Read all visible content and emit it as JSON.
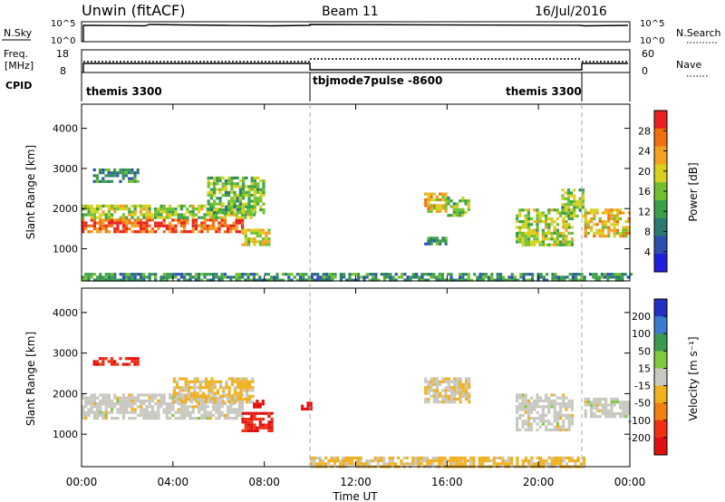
{
  "header": {
    "radar": "Unwin (fitACF)",
    "beam": "Beam 11",
    "date": "16/Jul/2016"
  },
  "panels": {
    "nsky_label": "N.Sky",
    "nsearch_label": "N.Search",
    "freq_label": "Freq.",
    "freq_unit": "[MHz]",
    "nave_label": "Nave",
    "cpid_label": "CPID",
    "count_ticks": [
      "10^5",
      "10^0"
    ],
    "freq_ticks": [
      "18",
      "8"
    ],
    "nave_ticks": [
      "60",
      "0"
    ],
    "cpid_segments": [
      {
        "name": "themis 3300",
        "start_h": 0,
        "end_h": 10
      },
      {
        "name": "tbjmode7pulse -8600",
        "start_h": 10,
        "end_h": 22
      },
      {
        "name": "themis 3300",
        "start_h": 22,
        "end_h": 24
      }
    ]
  },
  "axes": {
    "x_label": "Time UT",
    "x_ticks": [
      "00:00",
      "04:00",
      "08:00",
      "12:00",
      "16:00",
      "20:00",
      "00:00"
    ],
    "y_label": "Slant Range [km]",
    "y_ticks": [
      "4000",
      "3000",
      "2000",
      "1000"
    ]
  },
  "colorbars": {
    "power": {
      "label": "Power [dB]",
      "ticks": [
        "28",
        "24",
        "20",
        "16",
        "12",
        "8",
        "4"
      ],
      "colors": [
        "#1f1fe0",
        "#2e4fb0",
        "#2a7a70",
        "#3aa048",
        "#72c030",
        "#d8d020",
        "#f4a020",
        "#f07010",
        "#e82020"
      ]
    },
    "velocity": {
      "label": "Velocity [m s⁻¹]",
      "ticks": [
        "200",
        "100",
        "50",
        "15",
        "-15",
        "-50",
        "-100",
        "-200"
      ],
      "colors": [
        "#2030c0",
        "#3a7ad0",
        "#3a9a50",
        "#80c840",
        "#c8c8c0",
        "#f0b020",
        "#f08010",
        "#f03010",
        "#e01010"
      ]
    }
  },
  "chart_data": [
    {
      "type": "heatmap",
      "title": "Power",
      "xlabel": "Time UT",
      "ylabel": "Slant Range [km]",
      "xlim_hours": [
        0,
        24
      ],
      "ylim_km": [
        200,
        4600
      ],
      "colorbar_label": "Power [dB]",
      "colorbar_range": [
        0,
        30
      ],
      "features": [
        {
          "t0": 0.0,
          "t1": 7.0,
          "r0": 1450,
          "r1": 1750,
          "value": 26
        },
        {
          "t0": 0.0,
          "t1": 7.5,
          "r0": 1750,
          "r1": 2100,
          "value": 16
        },
        {
          "t0": 5.5,
          "t1": 8.0,
          "r0": 1900,
          "r1": 2800,
          "value": 14
        },
        {
          "t0": 7.0,
          "t1": 8.2,
          "r0": 1100,
          "r1": 1500,
          "value": 18
        },
        {
          "t0": 0.5,
          "t1": 2.5,
          "r0": 2700,
          "r1": 3000,
          "value": 10
        },
        {
          "t0": 15.0,
          "t1": 16.0,
          "r0": 1900,
          "r1": 2400,
          "value": 20
        },
        {
          "t0": 16.0,
          "t1": 17.0,
          "r0": 1800,
          "r1": 2300,
          "value": 14
        },
        {
          "t0": 15.0,
          "t1": 16.0,
          "r0": 1100,
          "r1": 1300,
          "value": 10
        },
        {
          "t0": 19.0,
          "t1": 21.5,
          "r0": 1100,
          "r1": 2000,
          "value": 16
        },
        {
          "t0": 21.0,
          "t1": 22.0,
          "r0": 1800,
          "r1": 2500,
          "value": 14
        },
        {
          "t0": 22.0,
          "t1": 24.0,
          "r0": 1300,
          "r1": 2000,
          "value": 20
        },
        {
          "t0": 0.0,
          "t1": 24.0,
          "r0": 200,
          "r1": 400,
          "value": 10
        }
      ]
    },
    {
      "type": "heatmap",
      "title": "Velocity",
      "xlabel": "Time UT",
      "ylabel": "Slant Range [km]",
      "xlim_hours": [
        0,
        24
      ],
      "ylim_km": [
        200,
        4600
      ],
      "colorbar_label": "Velocity [m s⁻¹]",
      "colorbar_range": [
        -250,
        250
      ],
      "features": [
        {
          "t0": 0.0,
          "t1": 7.0,
          "r0": 1400,
          "r1": 2000,
          "value": 0
        },
        {
          "t0": 4.0,
          "t1": 7.5,
          "r0": 1800,
          "r1": 2400,
          "value": -40
        },
        {
          "t0": 7.0,
          "t1": 8.3,
          "r0": 1050,
          "r1": 1550,
          "value": -200
        },
        {
          "t0": 7.5,
          "t1": 8.0,
          "r0": 1650,
          "r1": 1850,
          "value": -220
        },
        {
          "t0": 9.6,
          "t1": 10.0,
          "r0": 1650,
          "r1": 1800,
          "value": -220
        },
        {
          "t0": 0.5,
          "t1": 2.5,
          "r0": 2700,
          "r1": 2900,
          "value": -180
        },
        {
          "t0": 15.0,
          "t1": 17.0,
          "r0": 1800,
          "r1": 2400,
          "value": -20
        },
        {
          "t0": 19.0,
          "t1": 21.5,
          "r0": 1100,
          "r1": 2000,
          "value": 0
        },
        {
          "t0": 22.0,
          "t1": 24.0,
          "r0": 1400,
          "r1": 1900,
          "value": 0
        },
        {
          "t0": 10.0,
          "t1": 22.0,
          "r0": 200,
          "r1": 450,
          "value": -40
        }
      ]
    }
  ]
}
